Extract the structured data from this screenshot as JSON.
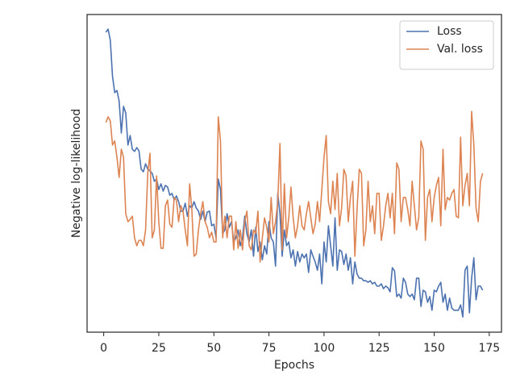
{
  "chart_data": {
    "type": "line",
    "xlabel": "Epochs",
    "ylabel": "Negative log-likelihood",
    "x": [
      1,
      2,
      3,
      4,
      5,
      6,
      7,
      8,
      9,
      10,
      11,
      12,
      13,
      14,
      15,
      16,
      17,
      18,
      19,
      20,
      21,
      22,
      23,
      24,
      25,
      26,
      27,
      28,
      29,
      30,
      31,
      32,
      33,
      34,
      35,
      36,
      37,
      38,
      39,
      40,
      41,
      42,
      43,
      44,
      45,
      46,
      47,
      48,
      49,
      50,
      51,
      52,
      53,
      54,
      55,
      56,
      57,
      58,
      59,
      60,
      61,
      62,
      63,
      64,
      65,
      66,
      67,
      68,
      69,
      70,
      71,
      72,
      73,
      74,
      75,
      76,
      77,
      78,
      79,
      80,
      81,
      82,
      83,
      84,
      85,
      86,
      87,
      88,
      89,
      90,
      91,
      92,
      93,
      94,
      95,
      96,
      97,
      98,
      99,
      100,
      101,
      102,
      103,
      104,
      105,
      106,
      107,
      108,
      109,
      110,
      111,
      112,
      113,
      114,
      115,
      116,
      117,
      118,
      119,
      120,
      121,
      122,
      123,
      124,
      125,
      126,
      127,
      128,
      129,
      130,
      131,
      132,
      133,
      134,
      135,
      136,
      137,
      138,
      139,
      140,
      141,
      142,
      143,
      144,
      145,
      146,
      147,
      148,
      149,
      150,
      151,
      152,
      153,
      154,
      155,
      156,
      157,
      158,
      159,
      160,
      161,
      162,
      163,
      164,
      165,
      166,
      167,
      168,
      169,
      170,
      171,
      172
    ],
    "series": [
      {
        "name": "Loss",
        "color": "#4c72b0",
        "values": [
          94.4,
          95.4,
          91.9,
          80.5,
          75.4,
          76.1,
          72.8,
          62.7,
          71.1,
          69.0,
          58.9,
          61.9,
          57.6,
          56.9,
          58.1,
          57.1,
          51.3,
          50.5,
          53.0,
          51.3,
          50.8,
          50.0,
          47.5,
          48.2,
          44.9,
          46.7,
          44.4,
          46.2,
          45.7,
          43.1,
          43.7,
          41.6,
          42.9,
          41.1,
          38.1,
          38.1,
          40.6,
          36.5,
          39.8,
          39.1,
          41.1,
          39.1,
          38.1,
          35.5,
          38.1,
          34.8,
          37.8,
          38.1,
          33.5,
          34.0,
          29.7,
          48.2,
          44.9,
          31.0,
          32.2,
          37.3,
          33.0,
          34.8,
          28.4,
          29.7,
          32.2,
          27.2,
          29.7,
          36.5,
          31.0,
          28.4,
          32.2,
          23.9,
          33.0,
          25.4,
          28.4,
          22.8,
          27.2,
          24.6,
          34.8,
          29.7,
          28.4,
          20.8,
          43.7,
          37.3,
          23.9,
          32.2,
          27.2,
          28.4,
          23.4,
          25.9,
          20.8,
          25.4,
          22.1,
          24.6,
          23.4,
          24.6,
          18.8,
          25.9,
          23.9,
          22.1,
          19.5,
          24.6,
          15.2,
          28.4,
          22.1,
          33.5,
          27.2,
          20.8,
          36.0,
          19.5,
          25.9,
          25.4,
          21.3,
          24.6,
          19.5,
          23.4,
          15.2,
          22.1,
          18.3,
          17.0,
          17.0,
          16.2,
          16.2,
          15.7,
          16.2,
          15.2,
          15.7,
          14.5,
          14.5,
          15.2,
          13.7,
          14.5,
          14.0,
          12.7,
          20.3,
          19.3,
          11.2,
          12.0,
          10.7,
          17.0,
          15.7,
          12.0,
          11.2,
          12.0,
          10.2,
          17.0,
          17.0,
          8.1,
          13.2,
          12.7,
          9.4,
          11.2,
          6.9,
          13.2,
          12.7,
          14.5,
          15.7,
          9.4,
          12.0,
          6.9,
          10.7,
          7.6,
          6.9,
          6.9,
          6.9,
          8.6,
          4.8,
          19.5,
          20.8,
          6.1,
          17.0,
          23.4,
          10.2,
          14.5,
          14.5,
          13.2
        ]
      },
      {
        "name": "Val. loss",
        "color": "#dd8452",
        "values": [
          66.0,
          67.8,
          66.5,
          58.9,
          60.2,
          55.1,
          48.7,
          57.6,
          55.1,
          37.3,
          34.8,
          35.5,
          36.5,
          29.7,
          27.2,
          28.9,
          28.9,
          27.2,
          32.2,
          50.0,
          56.3,
          29.7,
          32.2,
          49.2,
          34.8,
          26.4,
          26.4,
          39.8,
          41.6,
          34.0,
          33.0,
          42.4,
          41.6,
          34.8,
          39.8,
          38.1,
          32.2,
          27.2,
          46.7,
          38.6,
          23.9,
          24.6,
          32.2,
          37.3,
          41.1,
          34.8,
          33.0,
          29.7,
          31.5,
          28.4,
          28.4,
          67.8,
          60.2,
          29.7,
          36.5,
          29.7,
          36.5,
          36.5,
          25.9,
          34.8,
          26.4,
          32.2,
          25.9,
          34.8,
          38.1,
          27.2,
          25.9,
          32.2,
          31.0,
          38.1,
          22.1,
          29.7,
          36.0,
          33.0,
          28.4,
          42.4,
          31.0,
          34.8,
          41.1,
          59.4,
          25.9,
          46.7,
          29.7,
          36.0,
          45.7,
          36.0,
          29.7,
          33.5,
          39.8,
          33.5,
          32.2,
          37.3,
          41.1,
          36.0,
          31.0,
          34.0,
          41.1,
          34.8,
          44.9,
          55.1,
          61.9,
          41.1,
          37.3,
          47.5,
          38.6,
          50.0,
          33.5,
          39.1,
          51.3,
          49.2,
          34.8,
          42.4,
          47.5,
          23.9,
          38.6,
          51.3,
          50.0,
          27.2,
          32.2,
          47.5,
          34.8,
          39.8,
          31.0,
          43.7,
          43.7,
          28.9,
          33.5,
          39.8,
          43.7,
          36.0,
          43.7,
          31.0,
          53.3,
          51.3,
          34.8,
          42.4,
          42.4,
          38.6,
          33.5,
          47.5,
          39.8,
          32.2,
          36.0,
          60.2,
          57.6,
          28.9,
          42.4,
          44.9,
          34.8,
          42.4,
          46.2,
          48.7,
          33.5,
          57.6,
          38.6,
          42.4,
          41.6,
          43.7,
          44.9,
          36.5,
          36.0,
          61.4,
          39.8,
          46.2,
          50.0,
          39.8,
          69.5,
          58.9,
          39.1,
          34.8,
          47.5,
          50.0
        ]
      }
    ],
    "xlim": [
      -7.55,
      180.55
    ],
    "xticks": [
      0,
      25,
      50,
      75,
      100,
      125,
      150,
      175
    ],
    "ylim": [
      0,
      100
    ],
    "legend": "upper right"
  }
}
